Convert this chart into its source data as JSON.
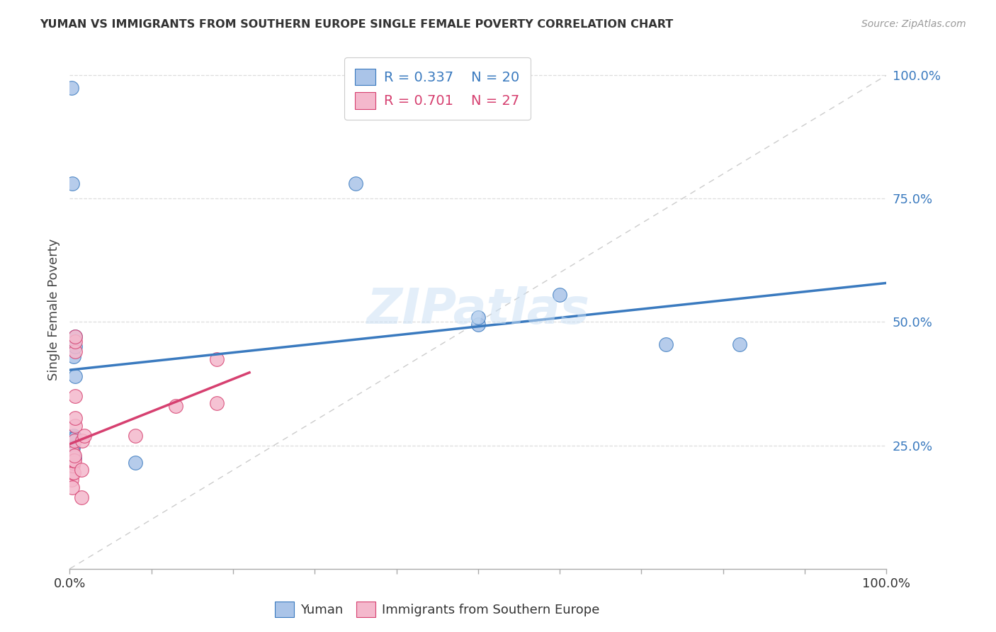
{
  "title": "YUMAN VS IMMIGRANTS FROM SOUTHERN EUROPE SINGLE FEMALE POVERTY CORRELATION CHART",
  "source": "Source: ZipAtlas.com",
  "ylabel": "Single Female Poverty",
  "legend_yuman": "Yuman",
  "legend_immigrants": "Immigrants from Southern Europe",
  "r_yuman": "0.337",
  "n_yuman": "20",
  "r_immigrants": "0.701",
  "n_immigrants": "27",
  "color_yuman": "#aac4e8",
  "color_yuman_line": "#3a7abf",
  "color_immigrants": "#f4b8cc",
  "color_immigrants_line": "#d64070",
  "color_diag": "#cccccc",
  "watermark_text": "ZIPatlas",
  "background": "#ffffff",
  "yuman_points": [
    [
      0.002,
      0.975
    ],
    [
      0.003,
      0.78
    ],
    [
      0.005,
      0.43
    ],
    [
      0.007,
      0.39
    ],
    [
      0.005,
      0.27
    ],
    [
      0.005,
      0.265
    ],
    [
      0.007,
      0.265
    ],
    [
      0.004,
      0.245
    ],
    [
      0.003,
      0.245
    ],
    [
      0.003,
      0.225
    ],
    [
      0.006,
      0.225
    ],
    [
      0.007,
      0.45
    ],
    [
      0.007,
      0.47
    ],
    [
      0.08,
      0.215
    ],
    [
      0.35,
      0.78
    ],
    [
      0.5,
      0.495
    ],
    [
      0.5,
      0.51
    ],
    [
      0.6,
      0.555
    ],
    [
      0.73,
      0.455
    ],
    [
      0.82,
      0.455
    ]
  ],
  "immigrants_points": [
    [
      0.002,
      0.18
    ],
    [
      0.003,
      0.165
    ],
    [
      0.003,
      0.195
    ],
    [
      0.003,
      0.21
    ],
    [
      0.004,
      0.21
    ],
    [
      0.004,
      0.215
    ],
    [
      0.004,
      0.22
    ],
    [
      0.004,
      0.235
    ],
    [
      0.005,
      0.195
    ],
    [
      0.005,
      0.22
    ],
    [
      0.006,
      0.22
    ],
    [
      0.006,
      0.23
    ],
    [
      0.006,
      0.26
    ],
    [
      0.007,
      0.29
    ],
    [
      0.007,
      0.305
    ],
    [
      0.007,
      0.35
    ],
    [
      0.007,
      0.44
    ],
    [
      0.007,
      0.46
    ],
    [
      0.007,
      0.47
    ],
    [
      0.014,
      0.145
    ],
    [
      0.014,
      0.2
    ],
    [
      0.015,
      0.26
    ],
    [
      0.018,
      0.27
    ],
    [
      0.08,
      0.27
    ],
    [
      0.13,
      0.33
    ],
    [
      0.18,
      0.335
    ],
    [
      0.18,
      0.425
    ]
  ],
  "xlim": [
    0.0,
    1.0
  ],
  "ylim": [
    0.0,
    1.05
  ],
  "ytick_vals": [
    0.25,
    0.5,
    0.75,
    1.0
  ],
  "ytick_labels": [
    "25.0%",
    "50.0%",
    "75.0%",
    "100.0%"
  ],
  "xtick_positions": [
    0.0,
    0.1,
    0.2,
    0.3,
    0.4,
    0.5,
    0.6,
    0.7,
    0.8,
    0.9,
    1.0
  ]
}
